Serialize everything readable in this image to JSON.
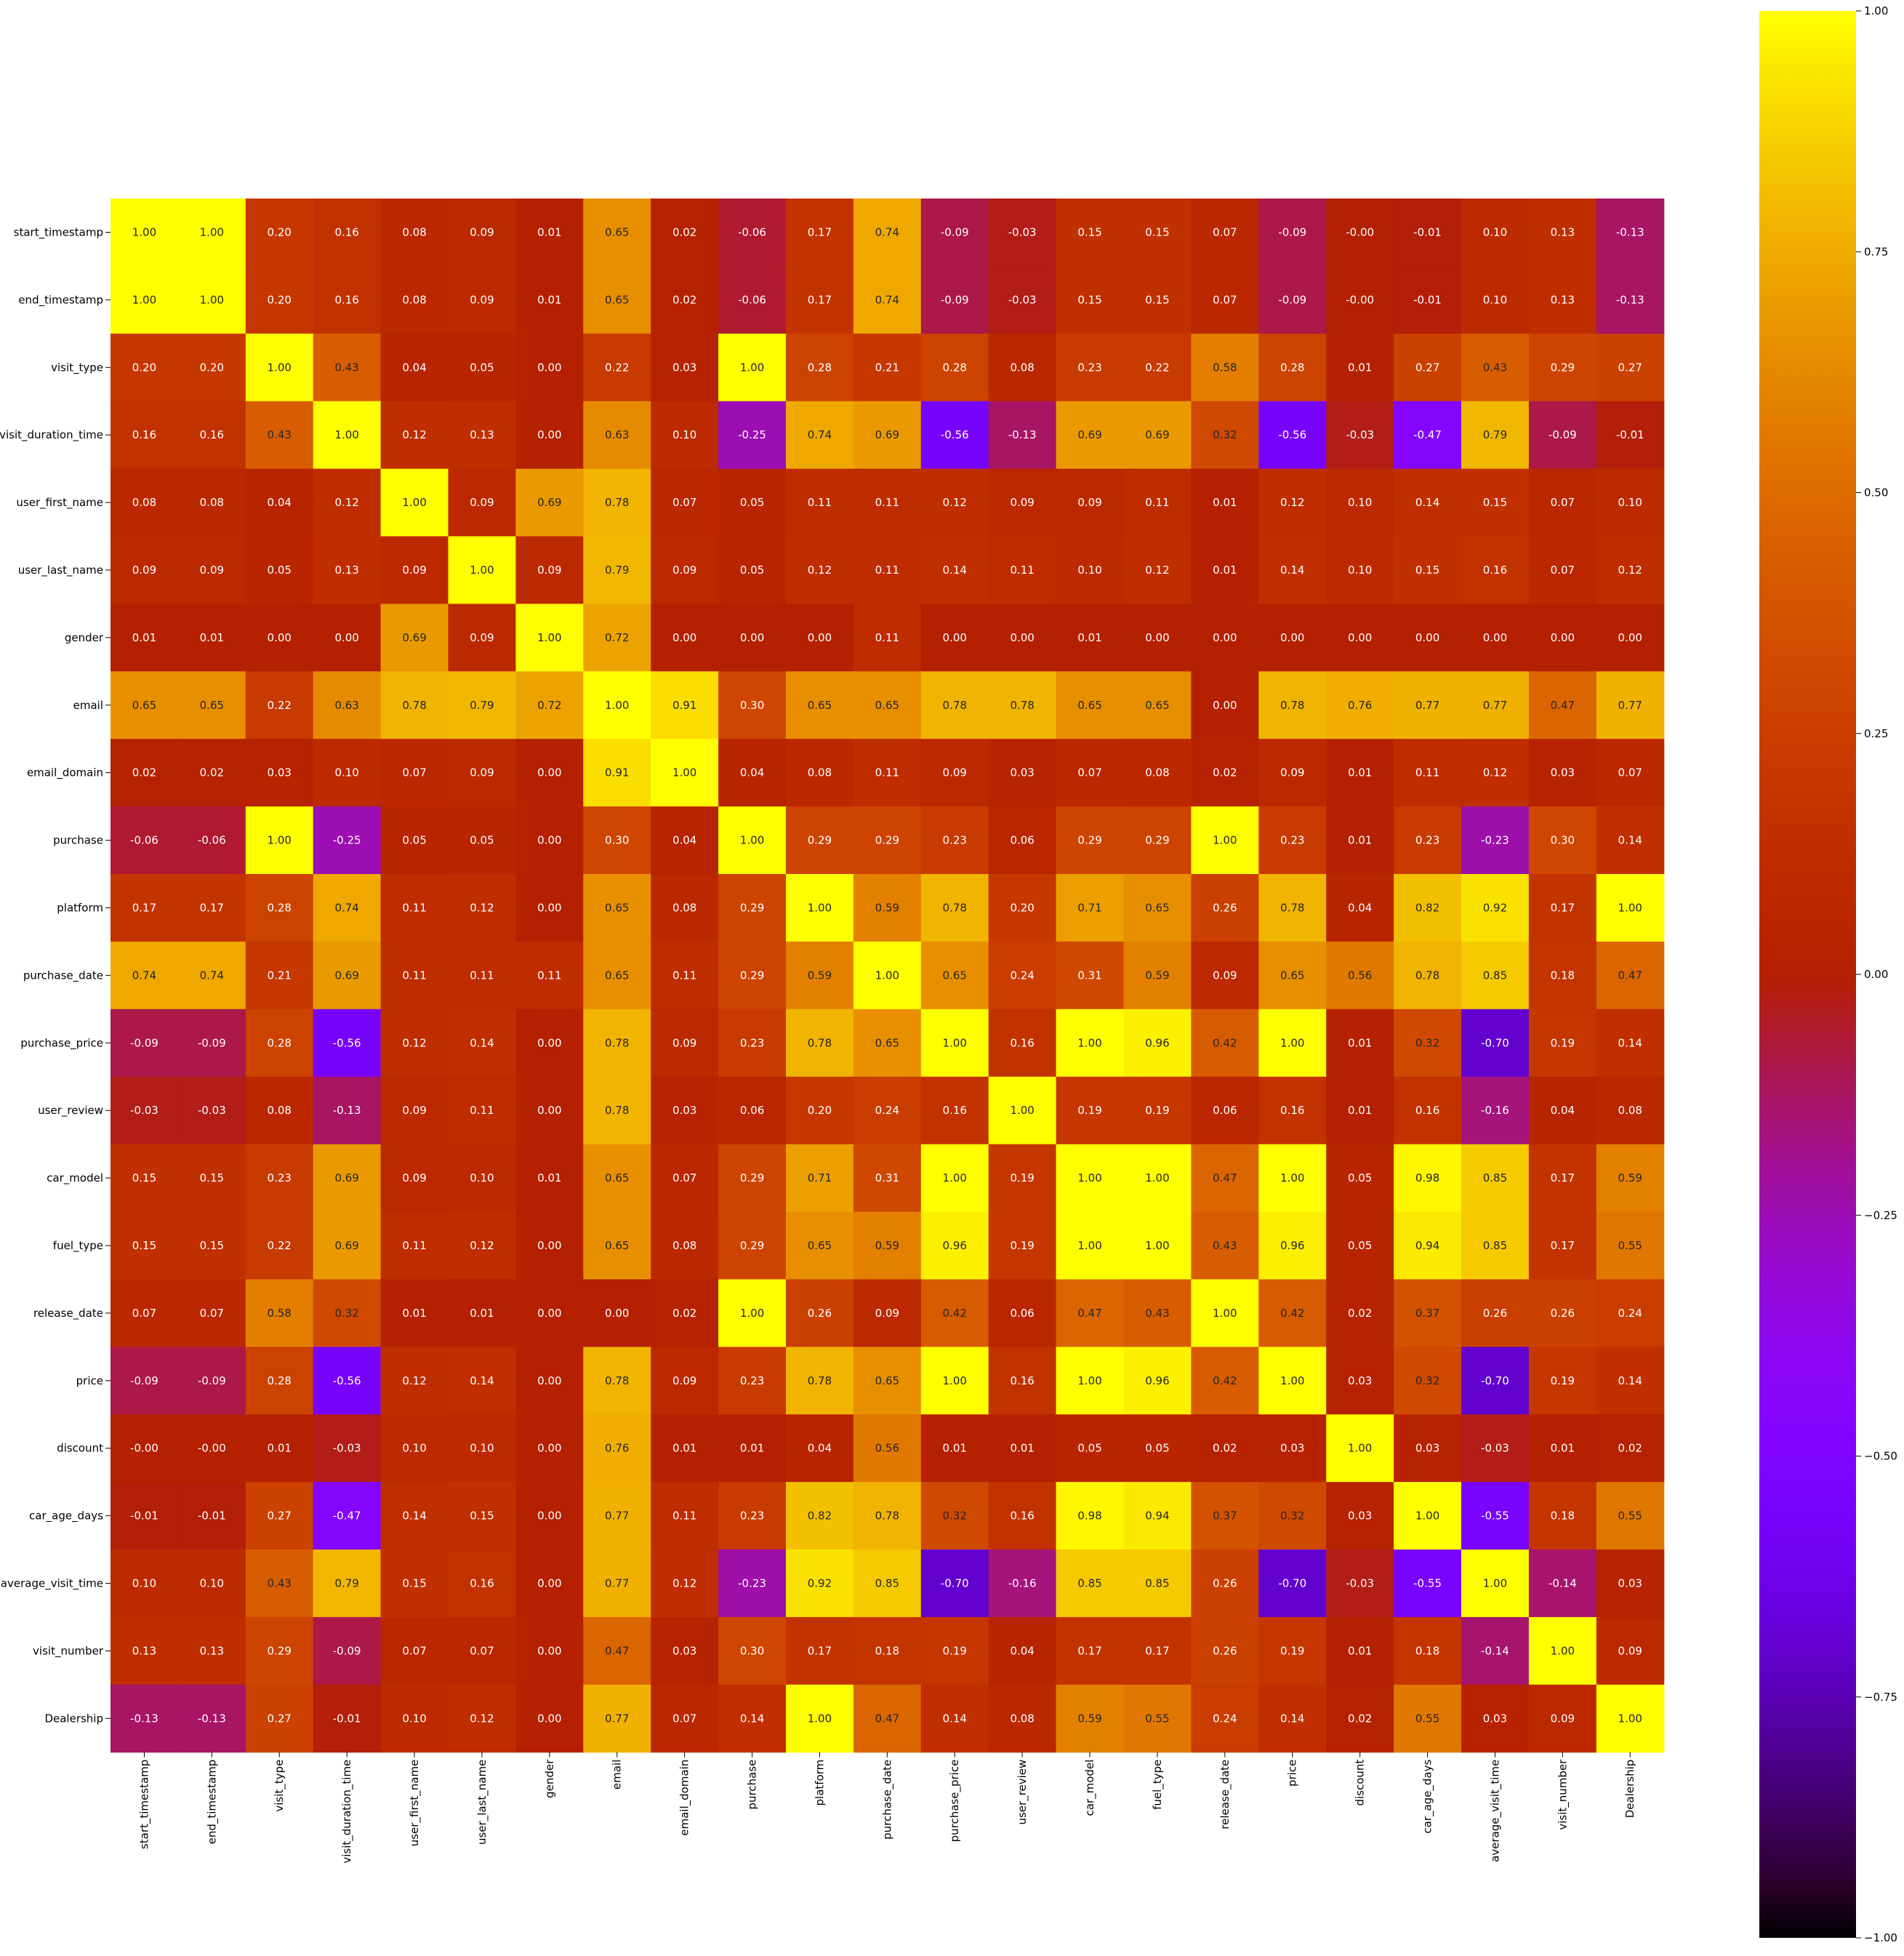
{
  "chart_data": {
    "type": "heatmap",
    "title": "",
    "labels": [
      "start_timestamp",
      "end_timestamp",
      "visit_type",
      "visit_duration_time",
      "user_first_name",
      "user_last_name",
      "gender",
      "email",
      "email_domain",
      "purchase",
      "platform",
      "purchase_date",
      "purchase_price",
      "user_review",
      "car_model",
      "fuel_type",
      "release_date",
      "price",
      "discount",
      "car_age_days",
      "average_visit_time",
      "visit_number",
      "Dealership"
    ],
    "matrix": [
      [
        1.0,
        1.0,
        0.2,
        0.16,
        0.08,
        0.09,
        0.01,
        0.65,
        0.02,
        -0.06,
        0.17,
        0.74,
        -0.09,
        -0.03,
        0.15,
        0.15,
        0.07,
        -0.09,
        -0.0,
        -0.01,
        0.1,
        0.13,
        -0.13
      ],
      [
        1.0,
        1.0,
        0.2,
        0.16,
        0.08,
        0.09,
        0.01,
        0.65,
        0.02,
        -0.06,
        0.17,
        0.74,
        -0.09,
        -0.03,
        0.15,
        0.15,
        0.07,
        -0.09,
        -0.0,
        -0.01,
        0.1,
        0.13,
        -0.13
      ],
      [
        0.2,
        0.2,
        1.0,
        0.43,
        0.04,
        0.05,
        0.0,
        0.22,
        0.03,
        1.0,
        0.28,
        0.21,
        0.28,
        0.08,
        0.23,
        0.22,
        0.58,
        0.28,
        0.01,
        0.27,
        0.43,
        0.29,
        0.27
      ],
      [
        0.16,
        0.16,
        0.43,
        1.0,
        0.12,
        0.13,
        0.0,
        0.63,
        0.1,
        -0.25,
        0.74,
        0.69,
        -0.56,
        -0.13,
        0.69,
        0.69,
        0.32,
        -0.56,
        -0.03,
        -0.47,
        0.79,
        -0.09,
        -0.01
      ],
      [
        0.08,
        0.08,
        0.04,
        0.12,
        1.0,
        0.09,
        0.69,
        0.78,
        0.07,
        0.05,
        0.11,
        0.11,
        0.12,
        0.09,
        0.09,
        0.11,
        0.01,
        0.12,
        0.1,
        0.14,
        0.15,
        0.07,
        0.1
      ],
      [
        0.09,
        0.09,
        0.05,
        0.13,
        0.09,
        1.0,
        0.09,
        0.79,
        0.09,
        0.05,
        0.12,
        0.11,
        0.14,
        0.11,
        0.1,
        0.12,
        0.01,
        0.14,
        0.1,
        0.15,
        0.16,
        0.07,
        0.12
      ],
      [
        0.01,
        0.01,
        0.0,
        0.0,
        0.69,
        0.09,
        1.0,
        0.72,
        0.0,
        0.0,
        0.0,
        0.11,
        0.0,
        0.0,
        0.01,
        0.0,
        0.0,
        0.0,
        0.0,
        0.0,
        0.0,
        0.0,
        0.0
      ],
      [
        0.65,
        0.65,
        0.22,
        0.63,
        0.78,
        0.79,
        0.72,
        1.0,
        0.91,
        0.3,
        0.65,
        0.65,
        0.78,
        0.78,
        0.65,
        0.65,
        0.0,
        0.78,
        0.76,
        0.77,
        0.77,
        0.47,
        0.77
      ],
      [
        0.02,
        0.02,
        0.03,
        0.1,
        0.07,
        0.09,
        0.0,
        0.91,
        1.0,
        0.04,
        0.08,
        0.11,
        0.09,
        0.03,
        0.07,
        0.08,
        0.02,
        0.09,
        0.01,
        0.11,
        0.12,
        0.03,
        0.07
      ],
      [
        -0.06,
        -0.06,
        1.0,
        -0.25,
        0.05,
        0.05,
        0.0,
        0.3,
        0.04,
        1.0,
        0.29,
        0.29,
        0.23,
        0.06,
        0.29,
        0.29,
        1.0,
        0.23,
        0.01,
        0.23,
        -0.23,
        0.3,
        0.14
      ],
      [
        0.17,
        0.17,
        0.28,
        0.74,
        0.11,
        0.12,
        0.0,
        0.65,
        0.08,
        0.29,
        1.0,
        0.59,
        0.78,
        0.2,
        0.71,
        0.65,
        0.26,
        0.78,
        0.04,
        0.82,
        0.92,
        0.17,
        1.0
      ],
      [
        0.74,
        0.74,
        0.21,
        0.69,
        0.11,
        0.11,
        0.11,
        0.65,
        0.11,
        0.29,
        0.59,
        1.0,
        0.65,
        0.24,
        0.31,
        0.59,
        0.09,
        0.65,
        0.56,
        0.78,
        0.85,
        0.18,
        0.47
      ],
      [
        -0.09,
        -0.09,
        0.28,
        -0.56,
        0.12,
        0.14,
        0.0,
        0.78,
        0.09,
        0.23,
        0.78,
        0.65,
        1.0,
        0.16,
        1.0,
        0.96,
        0.42,
        1.0,
        0.01,
        0.32,
        -0.7,
        0.19,
        0.14
      ],
      [
        -0.03,
        -0.03,
        0.08,
        -0.13,
        0.09,
        0.11,
        0.0,
        0.78,
        0.03,
        0.06,
        0.2,
        0.24,
        0.16,
        1.0,
        0.19,
        0.19,
        0.06,
        0.16,
        0.01,
        0.16,
        -0.16,
        0.04,
        0.08
      ],
      [
        0.15,
        0.15,
        0.23,
        0.69,
        0.09,
        0.1,
        0.01,
        0.65,
        0.07,
        0.29,
        0.71,
        0.31,
        1.0,
        0.19,
        1.0,
        1.0,
        0.47,
        1.0,
        0.05,
        0.98,
        0.85,
        0.17,
        0.59
      ],
      [
        0.15,
        0.15,
        0.22,
        0.69,
        0.11,
        0.12,
        0.0,
        0.65,
        0.08,
        0.29,
        0.65,
        0.59,
        0.96,
        0.19,
        1.0,
        1.0,
        0.43,
        0.96,
        0.05,
        0.94,
        0.85,
        0.17,
        0.55
      ],
      [
        0.07,
        0.07,
        0.58,
        0.32,
        0.01,
        0.01,
        0.0,
        0.0,
        0.02,
        1.0,
        0.26,
        0.09,
        0.42,
        0.06,
        0.47,
        0.43,
        1.0,
        0.42,
        0.02,
        0.37,
        0.26,
        0.26,
        0.24
      ],
      [
        -0.09,
        -0.09,
        0.28,
        -0.56,
        0.12,
        0.14,
        0.0,
        0.78,
        0.09,
        0.23,
        0.78,
        0.65,
        1.0,
        0.16,
        1.0,
        0.96,
        0.42,
        1.0,
        0.03,
        0.32,
        -0.7,
        0.19,
        0.14
      ],
      [
        -0.0,
        -0.0,
        0.01,
        -0.03,
        0.1,
        0.1,
        0.0,
        0.76,
        0.01,
        0.01,
        0.04,
        0.56,
        0.01,
        0.01,
        0.05,
        0.05,
        0.02,
        0.03,
        1.0,
        0.03,
        -0.03,
        0.01,
        0.02
      ],
      [
        -0.01,
        -0.01,
        0.27,
        -0.47,
        0.14,
        0.15,
        0.0,
        0.77,
        0.11,
        0.23,
        0.82,
        0.78,
        0.32,
        0.16,
        0.98,
        0.94,
        0.37,
        0.32,
        0.03,
        1.0,
        -0.55,
        0.18,
        0.55
      ],
      [
        0.1,
        0.1,
        0.43,
        0.79,
        0.15,
        0.16,
        0.0,
        0.77,
        0.12,
        -0.23,
        0.92,
        0.85,
        -0.7,
        -0.16,
        0.85,
        0.85,
        0.26,
        -0.7,
        -0.03,
        -0.55,
        1.0,
        -0.14,
        0.03
      ],
      [
        0.13,
        0.13,
        0.29,
        -0.09,
        0.07,
        0.07,
        0.0,
        0.47,
        0.03,
        0.3,
        0.17,
        0.18,
        0.19,
        0.04,
        0.17,
        0.17,
        0.26,
        0.19,
        0.01,
        0.18,
        -0.14,
        1.0,
        0.09
      ],
      [
        -0.13,
        -0.13,
        0.27,
        -0.01,
        0.1,
        0.12,
        0.0,
        0.77,
        0.07,
        0.14,
        1.0,
        0.47,
        0.14,
        0.08,
        0.59,
        0.55,
        0.24,
        0.14,
        0.02,
        0.55,
        0.03,
        0.09,
        1.0
      ]
    ],
    "annotations": [
      [
        "1.00",
        "1.00",
        "0.20",
        "0.16",
        "0.08",
        "0.09",
        "0.01",
        "0.65",
        "0.02",
        "-0.06",
        "0.17",
        "0.74",
        "-0.09",
        "-0.03",
        "0.15",
        "0.15",
        "0.07",
        "-0.09",
        "-0.00",
        "-0.01",
        "0.10",
        "0.13",
        "-0.13"
      ],
      [
        "1.00",
        "1.00",
        "0.20",
        "0.16",
        "0.08",
        "0.09",
        "0.01",
        "0.65",
        "0.02",
        "-0.06",
        "0.17",
        "0.74",
        "-0.09",
        "-0.03",
        "0.15",
        "0.15",
        "0.07",
        "-0.09",
        "-0.00",
        "-0.01",
        "0.10",
        "0.13",
        "-0.13"
      ],
      [
        "0.20",
        "0.20",
        "1.00",
        "0.43",
        "0.04",
        "0.05",
        "0.00",
        "0.22",
        "0.03",
        "1.00",
        "0.28",
        "0.21",
        "0.28",
        "0.08",
        "0.23",
        "0.22",
        "0.58",
        "0.28",
        "0.01",
        "0.27",
        "0.43",
        "0.29",
        "0.27"
      ],
      [
        "0.16",
        "0.16",
        "0.43",
        "1.00",
        "0.12",
        "0.13",
        "0.00",
        "0.63",
        "0.10",
        "-0.25",
        "0.74",
        "0.69",
        "-0.56",
        "-0.13",
        "0.69",
        "0.69",
        "0.32",
        "-0.56",
        "-0.03",
        "-0.47",
        "0.79",
        "-0.09",
        "-0.01"
      ],
      [
        "0.08",
        "0.08",
        "0.04",
        "0.12",
        "1.00",
        "0.09",
        "0.69",
        "0.78",
        "0.07",
        "0.05",
        "0.11",
        "0.11",
        "0.12",
        "0.09",
        "0.09",
        "0.11",
        "0.01",
        "0.12",
        "0.10",
        "0.14",
        "0.15",
        "0.07",
        "0.10"
      ],
      [
        "0.09",
        "0.09",
        "0.05",
        "0.13",
        "0.09",
        "1.00",
        "0.09",
        "0.79",
        "0.09",
        "0.05",
        "0.12",
        "0.11",
        "0.14",
        "0.11",
        "0.10",
        "0.12",
        "0.01",
        "0.14",
        "0.10",
        "0.15",
        "0.16",
        "0.07",
        "0.12"
      ],
      [
        "0.01",
        "0.01",
        "0.00",
        "0.00",
        "0.69",
        "0.09",
        "1.00",
        "0.72",
        "0.00",
        "0.00",
        "0.00",
        "0.11",
        "0.00",
        "0.00",
        "0.01",
        "0.00",
        "0.00",
        "0.00",
        "0.00",
        "0.00",
        "0.00",
        "0.00",
        "0.00"
      ],
      [
        "0.65",
        "0.65",
        "0.22",
        "0.63",
        "0.78",
        "0.79",
        "0.72",
        "1.00",
        "0.91",
        "0.30",
        "0.65",
        "0.65",
        "0.78",
        "0.78",
        "0.65",
        "0.65",
        "0.00",
        "0.78",
        "0.76",
        "0.77",
        "0.77",
        "0.47",
        "0.77"
      ],
      [
        "0.02",
        "0.02",
        "0.03",
        "0.10",
        "0.07",
        "0.09",
        "0.00",
        "0.91",
        "1.00",
        "0.04",
        "0.08",
        "0.11",
        "0.09",
        "0.03",
        "0.07",
        "0.08",
        "0.02",
        "0.09",
        "0.01",
        "0.11",
        "0.12",
        "0.03",
        "0.07"
      ],
      [
        "-0.06",
        "-0.06",
        "1.00",
        "-0.25",
        "0.05",
        "0.05",
        "0.00",
        "0.30",
        "0.04",
        "1.00",
        "0.29",
        "0.29",
        "0.23",
        "0.06",
        "0.29",
        "0.29",
        "1.00",
        "0.23",
        "0.01",
        "0.23",
        "-0.23",
        "0.30",
        "0.14"
      ],
      [
        "0.17",
        "0.17",
        "0.28",
        "0.74",
        "0.11",
        "0.12",
        "0.00",
        "0.65",
        "0.08",
        "0.29",
        "1.00",
        "0.59",
        "0.78",
        "0.20",
        "0.71",
        "0.65",
        "0.26",
        "0.78",
        "0.04",
        "0.82",
        "0.92",
        "0.17",
        "1.00"
      ],
      [
        "0.74",
        "0.74",
        "0.21",
        "0.69",
        "0.11",
        "0.11",
        "0.11",
        "0.65",
        "0.11",
        "0.29",
        "0.59",
        "1.00",
        "0.65",
        "0.24",
        "0.31",
        "0.59",
        "0.09",
        "0.65",
        "0.56",
        "0.78",
        "0.85",
        "0.18",
        "0.47"
      ],
      [
        "-0.09",
        "-0.09",
        "0.28",
        "-0.56",
        "0.12",
        "0.14",
        "0.00",
        "0.78",
        "0.09",
        "0.23",
        "0.78",
        "0.65",
        "1.00",
        "0.16",
        "1.00",
        "0.96",
        "0.42",
        "1.00",
        "0.01",
        "0.32",
        "-0.70",
        "0.19",
        "0.14"
      ],
      [
        "-0.03",
        "-0.03",
        "0.08",
        "-0.13",
        "0.09",
        "0.11",
        "0.00",
        "0.78",
        "0.03",
        "0.06",
        "0.20",
        "0.24",
        "0.16",
        "1.00",
        "0.19",
        "0.19",
        "0.06",
        "0.16",
        "0.01",
        "0.16",
        "-0.16",
        "0.04",
        "0.08"
      ],
      [
        "0.15",
        "0.15",
        "0.23",
        "0.69",
        "0.09",
        "0.10",
        "0.01",
        "0.65",
        "0.07",
        "0.29",
        "0.71",
        "0.31",
        "1.00",
        "0.19",
        "1.00",
        "1.00",
        "0.47",
        "1.00",
        "0.05",
        "0.98",
        "0.85",
        "0.17",
        "0.59"
      ],
      [
        "0.15",
        "0.15",
        "0.22",
        "0.69",
        "0.11",
        "0.12",
        "0.00",
        "0.65",
        "0.08",
        "0.29",
        "0.65",
        "0.59",
        "0.96",
        "0.19",
        "1.00",
        "1.00",
        "0.43",
        "0.96",
        "0.05",
        "0.94",
        "0.85",
        "0.17",
        "0.55"
      ],
      [
        "0.07",
        "0.07",
        "0.58",
        "0.32",
        "0.01",
        "0.01",
        "0.00",
        "0.00",
        "0.02",
        "1.00",
        "0.26",
        "0.09",
        "0.42",
        "0.06",
        "0.47",
        "0.43",
        "1.00",
        "0.42",
        "0.02",
        "0.37",
        "0.26",
        "0.26",
        "0.24"
      ],
      [
        "-0.09",
        "-0.09",
        "0.28",
        "-0.56",
        "0.12",
        "0.14",
        "0.00",
        "0.78",
        "0.09",
        "0.23",
        "0.78",
        "0.65",
        "1.00",
        "0.16",
        "1.00",
        "0.96",
        "0.42",
        "1.00",
        "0.03",
        "0.32",
        "-0.70",
        "0.19",
        "0.14"
      ],
      [
        "-0.00",
        "-0.00",
        "0.01",
        "-0.03",
        "0.10",
        "0.10",
        "0.00",
        "0.76",
        "0.01",
        "0.01",
        "0.04",
        "0.56",
        "0.01",
        "0.01",
        "0.05",
        "0.05",
        "0.02",
        "0.03",
        "1.00",
        "0.03",
        "-0.03",
        "0.01",
        "0.02"
      ],
      [
        "-0.01",
        "-0.01",
        "0.27",
        "-0.47",
        "0.14",
        "0.15",
        "0.00",
        "0.77",
        "0.11",
        "0.23",
        "0.82",
        "0.78",
        "0.32",
        "0.16",
        "0.98",
        "0.94",
        "0.37",
        "0.32",
        "0.03",
        "1.00",
        "-0.55",
        "0.18",
        "0.55"
      ],
      [
        "0.10",
        "0.10",
        "0.43",
        "0.79",
        "0.15",
        "0.16",
        "0.00",
        "0.77",
        "0.12",
        "-0.23",
        "0.92",
        "0.85",
        "-0.70",
        "-0.16",
        "0.85",
        "0.85",
        "0.26",
        "-0.70",
        "-0.03",
        "-0.55",
        "1.00",
        "-0.14",
        "0.03"
      ],
      [
        "0.13",
        "0.13",
        "0.29",
        "-0.09",
        "0.07",
        "0.07",
        "0.00",
        "0.47",
        "0.03",
        "0.30",
        "0.17",
        "0.18",
        "0.19",
        "0.04",
        "0.17",
        "0.17",
        "0.26",
        "0.19",
        "0.01",
        "0.18",
        "-0.14",
        "1.00",
        "0.09"
      ],
      [
        "-0.13",
        "-0.13",
        "0.27",
        "-0.01",
        "0.10",
        "0.12",
        "0.00",
        "0.77",
        "0.07",
        "0.14",
        "1.00",
        "0.47",
        "0.14",
        "0.08",
        "0.59",
        "0.55",
        "0.24",
        "0.14",
        "0.02",
        "0.55",
        "0.03",
        "0.09",
        "1.00"
      ]
    ],
    "colorbar": {
      "range": [
        -1.0,
        1.0
      ],
      "ticks": [
        -1.0,
        -0.75,
        -0.5,
        -0.25,
        0.0,
        0.25,
        0.5,
        0.75,
        1.0
      ],
      "tick_labels": [
        "−1.00",
        "−0.75",
        "−0.50",
        "−0.25",
        "0.00",
        "0.25",
        "0.50",
        "0.75",
        "1.00"
      ],
      "colormap": "gnuplot",
      "position": "right"
    },
    "xlabel": "",
    "ylabel": "",
    "grid": false
  }
}
